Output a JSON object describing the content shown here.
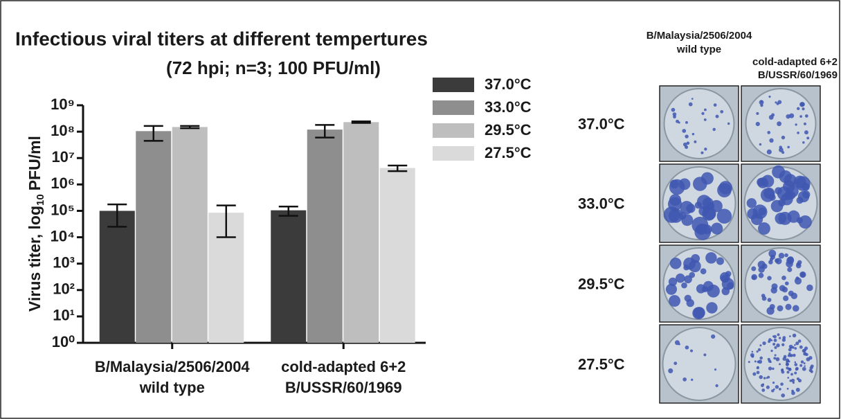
{
  "chart_data": {
    "type": "bar",
    "title": "Infectious viral titers at different tempertures",
    "subtitle": "(72 hpi; n=3; 100 PFU/ml)",
    "y_label": {
      "text": "Virus titer, log",
      "subscript": "10",
      "unit": "PFU/ml"
    },
    "categories": [
      [
        "B/Malaysia/2506/2004",
        "wild type"
      ],
      [
        "cold-adapted 6+2",
        "B/USSR/60/1969"
      ]
    ],
    "series": [
      {
        "name": "37.0°C",
        "color": "#3b3b3b",
        "values": [
          100000,
          105000
        ],
        "errors": [
          75000,
          40000
        ]
      },
      {
        "name": "33.0°C",
        "color": "#8e8e8e",
        "values": [
          105000000,
          120000000
        ],
        "errors": [
          60000000,
          60000000
        ]
      },
      {
        "name": "29.5°C",
        "color": "#bebebe",
        "values": [
          150000000,
          230000000
        ],
        "errors": [
          15000000,
          15000000
        ]
      },
      {
        "name": "27.5°C",
        "color": "#dadada",
        "values": [
          85000,
          4200000
        ],
        "errors": [
          75000,
          1000000
        ]
      }
    ],
    "log_scale": true,
    "ylim": [
      1,
      1000000000
    ],
    "yticks": [
      {
        "value": 1,
        "label": "10⁰"
      },
      {
        "value": 10,
        "label": "10¹"
      },
      {
        "value": 100,
        "label": "10²"
      },
      {
        "value": 1000,
        "label": "10³"
      },
      {
        "value": 10000,
        "label": "10⁴"
      },
      {
        "value": 100000,
        "label": "10⁵"
      },
      {
        "value": 1000000,
        "label": "10⁶"
      },
      {
        "value": 10000000,
        "label": "10⁷"
      },
      {
        "value": 100000000,
        "label": "10⁸"
      },
      {
        "value": 1000000000,
        "label": "10⁹"
      }
    ],
    "legend": "right"
  },
  "plate_panel": {
    "column_headers": [
      [
        "B/Malaysia/2506/2004",
        "wild type"
      ],
      [
        "cold-adapted 6+2",
        "B/USSR/60/1969"
      ]
    ],
    "row_labels": [
      "37.0°C",
      "33.0°C",
      "29.5°C",
      "27.5°C"
    ]
  }
}
